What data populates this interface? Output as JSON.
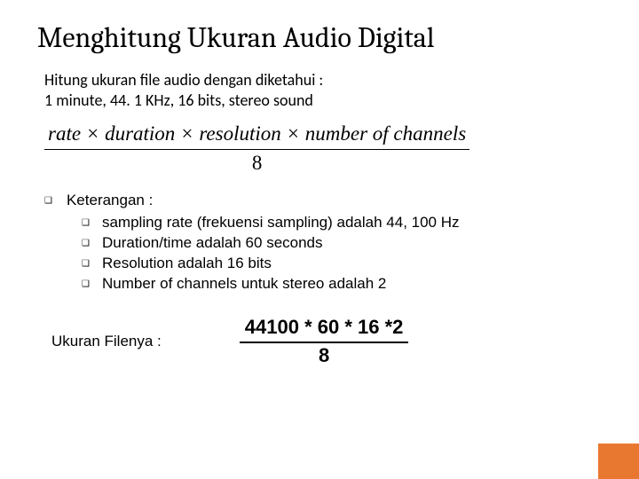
{
  "title": "Menghitung Ukuran Audio Digital",
  "problem_line1": "Hitung ukuran file audio dengan diketahui :",
  "problem_line2": "1 minute, 44. 1 KHz, 16 bits, stereo sound",
  "formula": {
    "numerator": "rate × duration × resolution × number of channels",
    "denominator": "8"
  },
  "keterangan_label": "Keterangan :",
  "keterangan": [
    "sampling rate (frekuensi sampling) adalah 44, 100 Hz",
    "Duration/time adalah 60 seconds",
    "Resolution adalah 16 bits",
    "Number of channels untuk stereo adalah 2"
  ],
  "ukuran_label": "Ukuran Filenya :",
  "calc": {
    "numerator": "44100 * 60 * 16 *2",
    "denominator": "8"
  },
  "colors": {
    "accent": "#e8782f",
    "text": "#000000",
    "bg": "#ffffff"
  }
}
